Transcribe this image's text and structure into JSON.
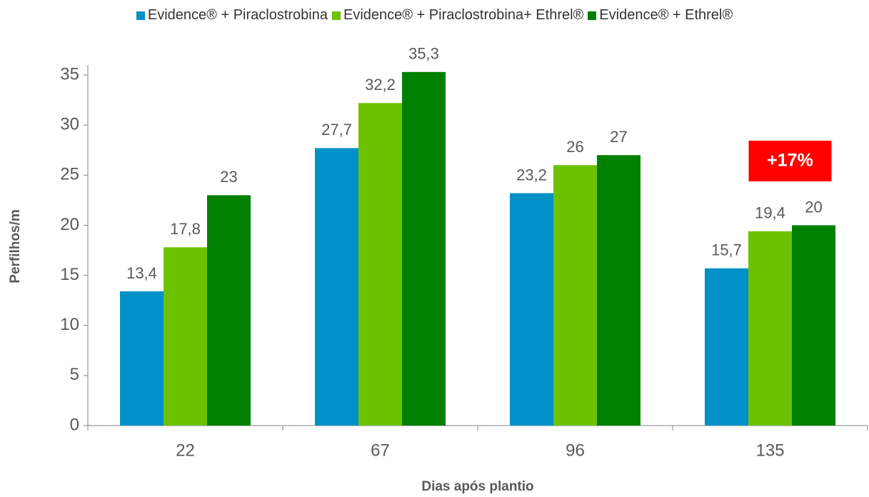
{
  "chart_data": {
    "type": "bar",
    "categories": [
      "22",
      "67",
      "96",
      "135"
    ],
    "series": [
      {
        "name": "Evidence® + Piraclostrobina",
        "color": "#0091c8",
        "values": [
          13.4,
          27.7,
          23.2,
          15.7
        ],
        "value_labels": [
          "13,4",
          "27,7",
          "23,2",
          "15,7"
        ]
      },
      {
        "name": "Evidence® + Piraclostrobina+ Ethrel®",
        "color": "#6cc200",
        "values": [
          17.8,
          32.2,
          26,
          19.4
        ],
        "value_labels": [
          "17,8",
          "32,2",
          "26",
          "19,4"
        ]
      },
      {
        "name": "Evidence® + Ethrel®",
        "color": "#008000",
        "values": [
          23,
          35.3,
          27,
          20
        ],
        "value_labels": [
          "23",
          "35,3",
          "27",
          "20"
        ]
      }
    ],
    "ylim": [
      0,
      36
    ],
    "yticks": [
      0,
      5,
      10,
      15,
      20,
      25,
      30,
      35
    ],
    "ylabel": "Perfilhos/m",
    "xlabel": "Dias após plantio",
    "annotation": {
      "text": "+17%",
      "color": "#ff0000"
    },
    "legend": "top"
  }
}
